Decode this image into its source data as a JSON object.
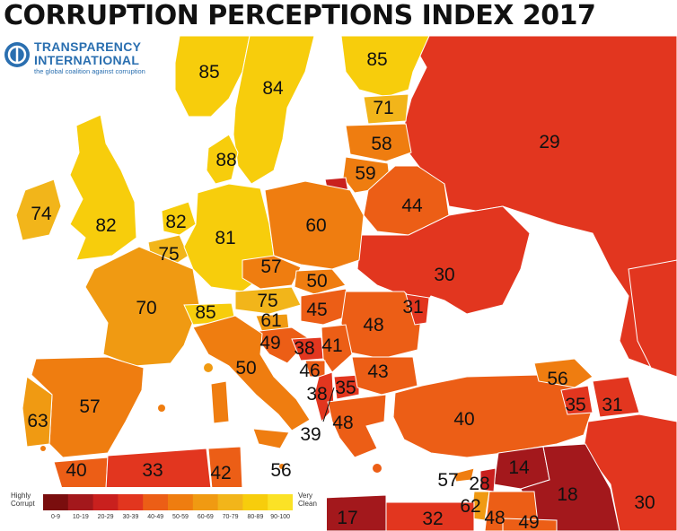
{
  "title": "CORRUPTION PERCEPTIONS INDEX 2017",
  "logo": {
    "line1": "TRANSPARENCY",
    "line2": "INTERNATIONAL",
    "tagline": "the global coalition against corruption"
  },
  "legend": {
    "low_label": "Highly Corrupt",
    "high_label": "Very Clean",
    "bins": [
      {
        "label": "0-9",
        "color": "#7a0e0e"
      },
      {
        "label": "10-19",
        "color": "#a3181c"
      },
      {
        "label": "20-29",
        "color": "#c9201e"
      },
      {
        "label": "30-39",
        "color": "#e2361f"
      },
      {
        "label": "40-49",
        "color": "#ec5e16"
      },
      {
        "label": "50-59",
        "color": "#ef7d10"
      },
      {
        "label": "60-69",
        "color": "#f09a12"
      },
      {
        "label": "70-79",
        "color": "#f2b51a"
      },
      {
        "label": "80-89",
        "color": "#f7cd0c"
      },
      {
        "label": "90-100",
        "color": "#fbe226"
      }
    ]
  },
  "colors": {
    "sea": "#ffffff",
    "border": "#ffffff",
    "text": "#111111"
  },
  "scores": [
    "85",
    "84",
    "85",
    "71",
    "58",
    "59",
    "29",
    "88",
    "44",
    "60",
    "82",
    "74",
    "82",
    "75",
    "81",
    "30",
    "57",
    "50",
    "75",
    "70",
    "85",
    "61",
    "45",
    "31",
    "48",
    "49",
    "38",
    "41",
    "50",
    "46",
    "43",
    "38",
    "35",
    "56",
    "63",
    "57",
    "48",
    "40",
    "35",
    "31",
    "39",
    "57",
    "28",
    "14",
    "40",
    "33",
    "42",
    "56",
    "62",
    "18",
    "30",
    "17",
    "32",
    "48",
    "49"
  ]
}
